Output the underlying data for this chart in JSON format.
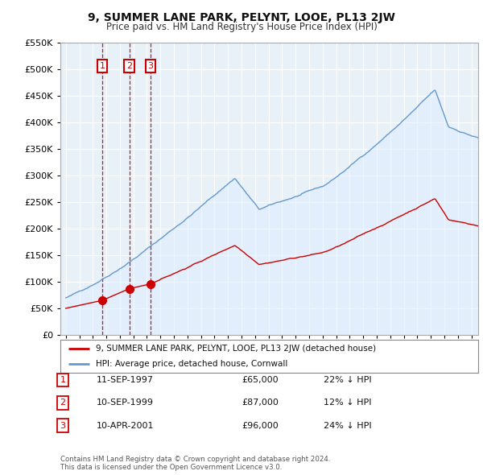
{
  "title": "9, SUMMER LANE PARK, PELYNT, LOOE, PL13 2JW",
  "subtitle": "Price paid vs. HM Land Registry's House Price Index (HPI)",
  "ylim": [
    0,
    550000
  ],
  "yticks": [
    0,
    50000,
    100000,
    150000,
    200000,
    250000,
    300000,
    350000,
    400000,
    450000,
    500000,
    550000
  ],
  "xlim_start": 1994.6,
  "xlim_end": 2025.5,
  "sale_dates": [
    1997.7,
    1999.7,
    2001.27
  ],
  "sale_prices": [
    65000,
    87000,
    96000
  ],
  "sale_labels": [
    "1",
    "2",
    "3"
  ],
  "hpi_color": "#6699cc",
  "hpi_fill_color": "#ddeeff",
  "price_color": "#cc0000",
  "chart_bg": "#e8f0f8",
  "legend_line1": "9, SUMMER LANE PARK, PELYNT, LOOE, PL13 2JW (detached house)",
  "legend_line2": "HPI: Average price, detached house, Cornwall",
  "table_rows": [
    [
      "1",
      "11-SEP-1997",
      "£65,000",
      "22% ↓ HPI"
    ],
    [
      "2",
      "10-SEP-1999",
      "£87,000",
      "12% ↓ HPI"
    ],
    [
      "3",
      "10-APR-2001",
      "£96,000",
      "24% ↓ HPI"
    ]
  ],
  "footnote": "Contains HM Land Registry data © Crown copyright and database right 2024.\nThis data is licensed under the Open Government Licence v3.0.",
  "background_color": "#ffffff",
  "grid_color": "#cccccc"
}
